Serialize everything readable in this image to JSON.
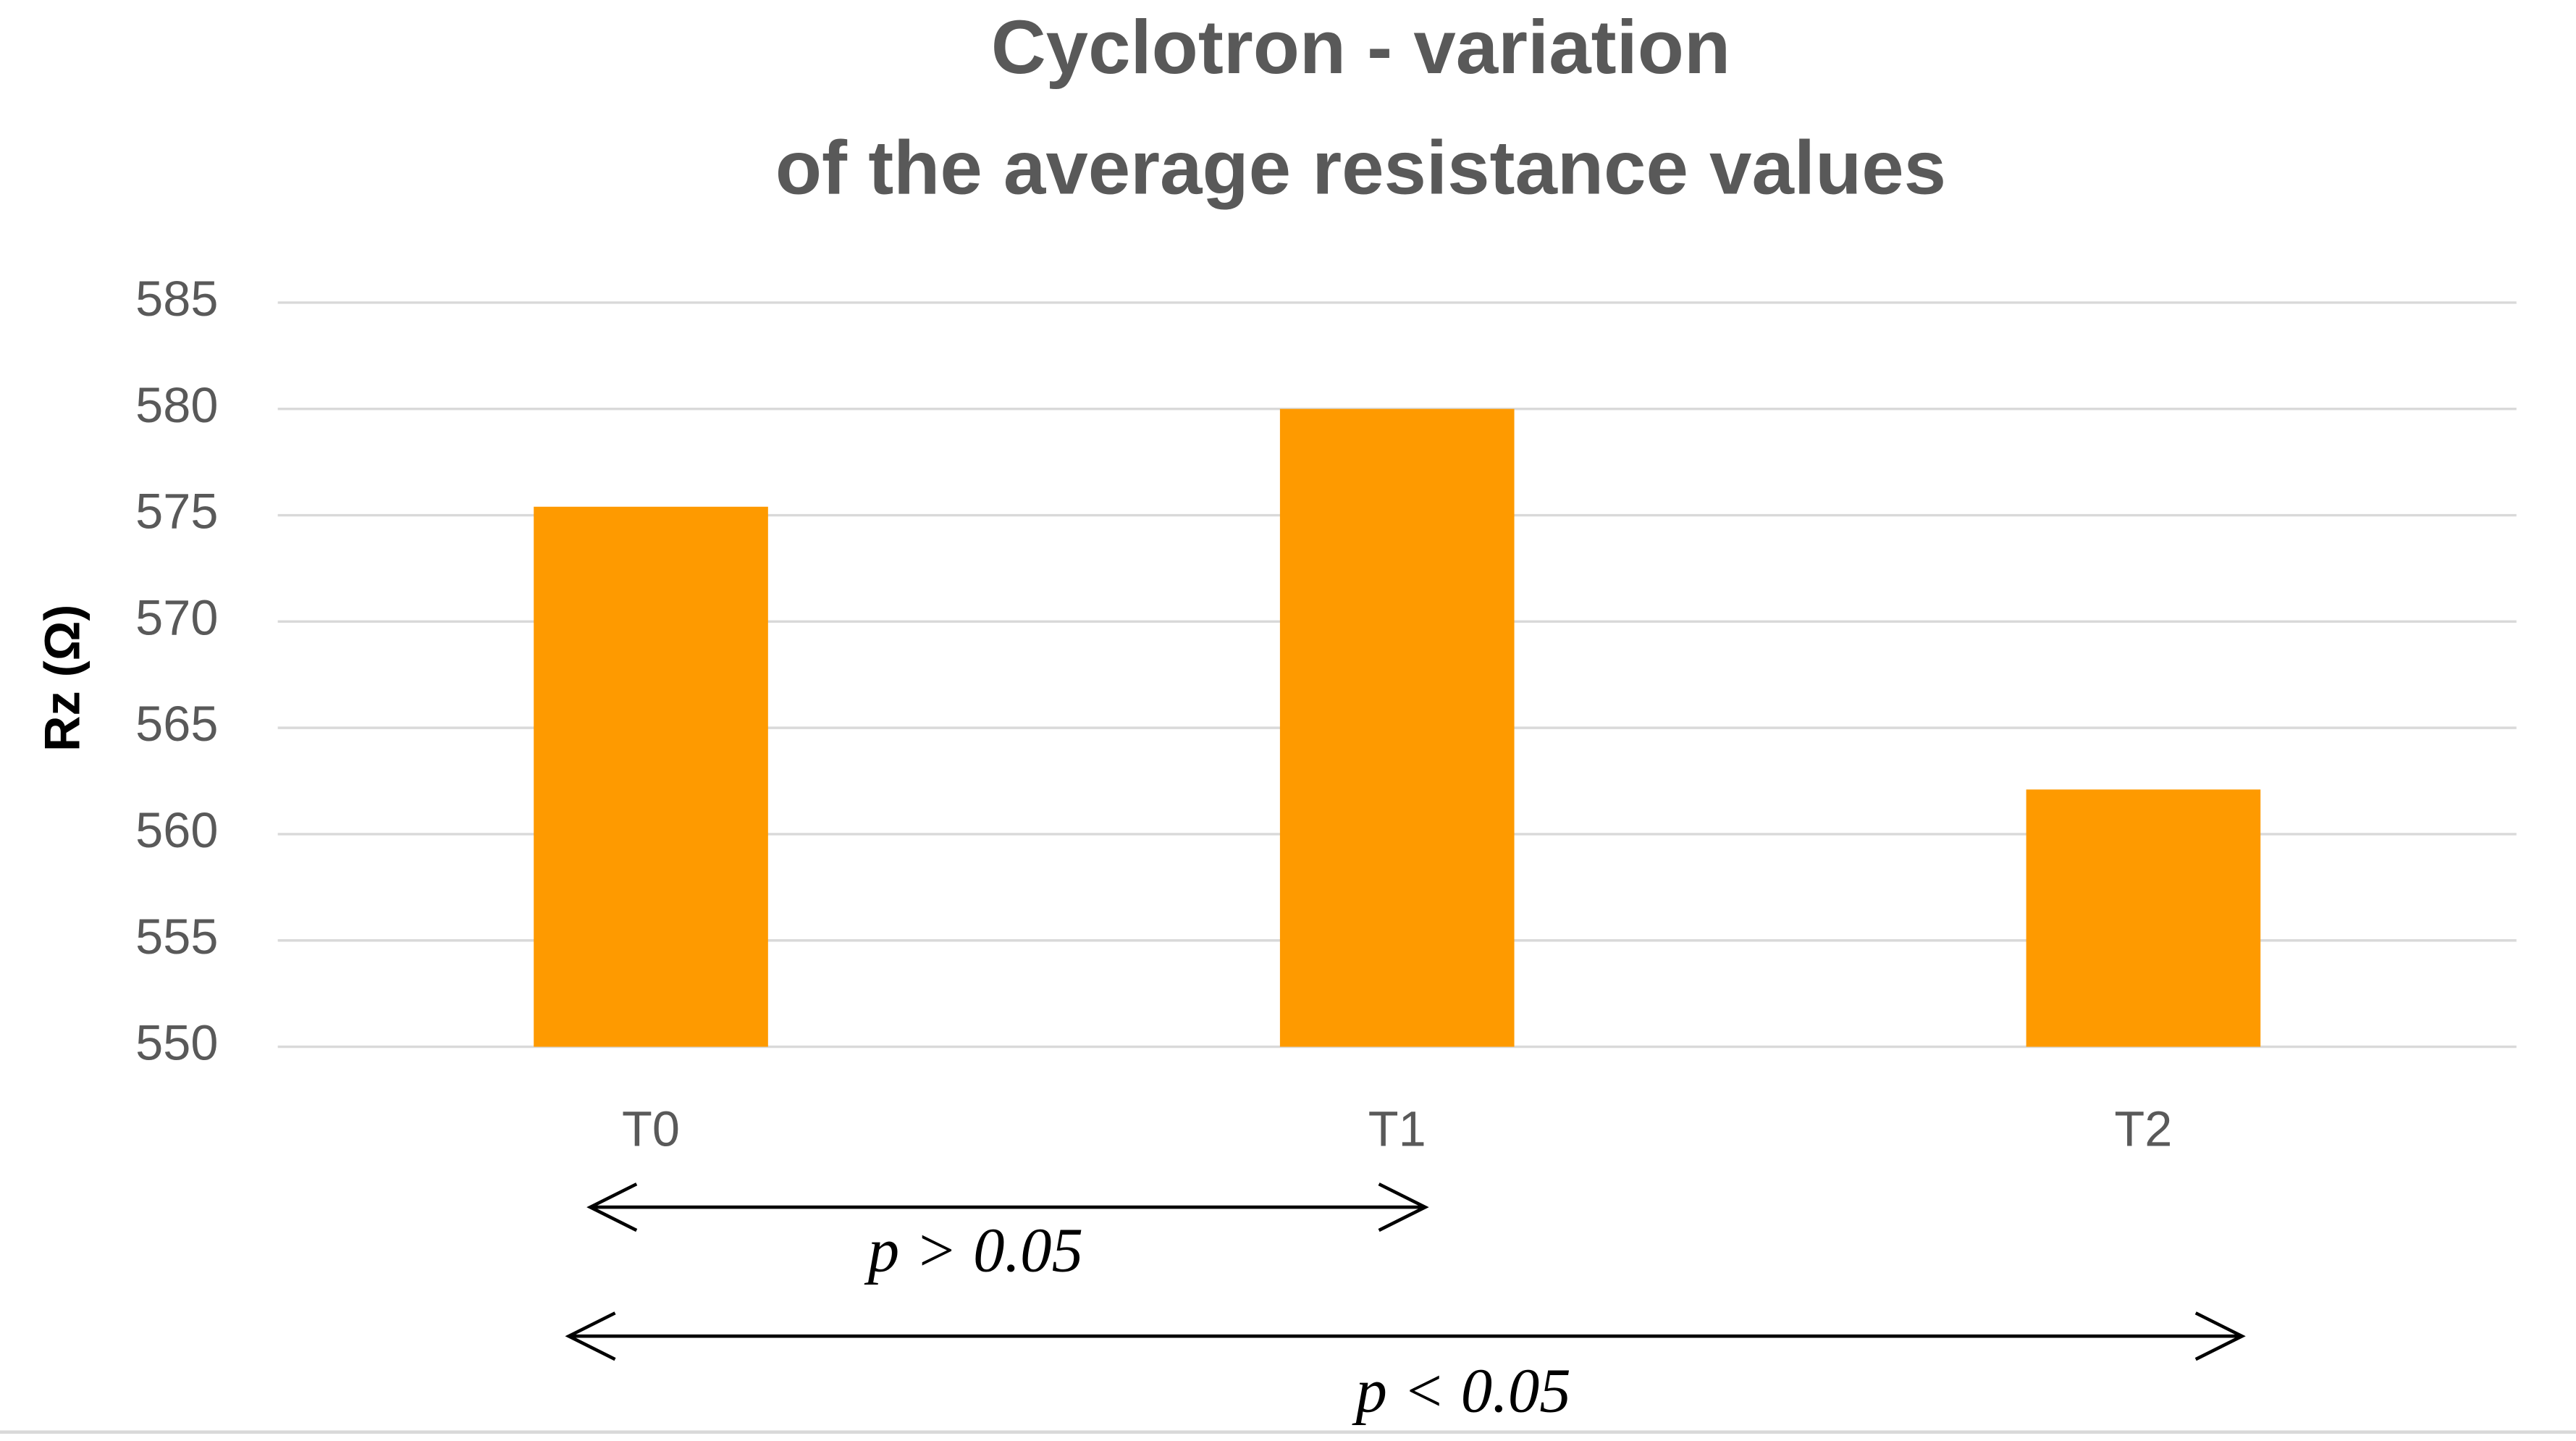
{
  "chart_data": {
    "type": "bar",
    "title": [
      "Cyclotron - variation",
      "of the average resistance values"
    ],
    "y_label": "Rz (Ω)",
    "categories": [
      "T0",
      "T1",
      "T2"
    ],
    "values": [
      575.4,
      580,
      562.1
    ],
    "color": "#fe9a00",
    "ylim": [
      550,
      585
    ],
    "yticks": [
      550,
      555,
      560,
      565,
      570,
      575,
      580,
      585
    ],
    "grid": true,
    "annotations": [
      "p > 0.05",
      "p < 0.05"
    ]
  }
}
